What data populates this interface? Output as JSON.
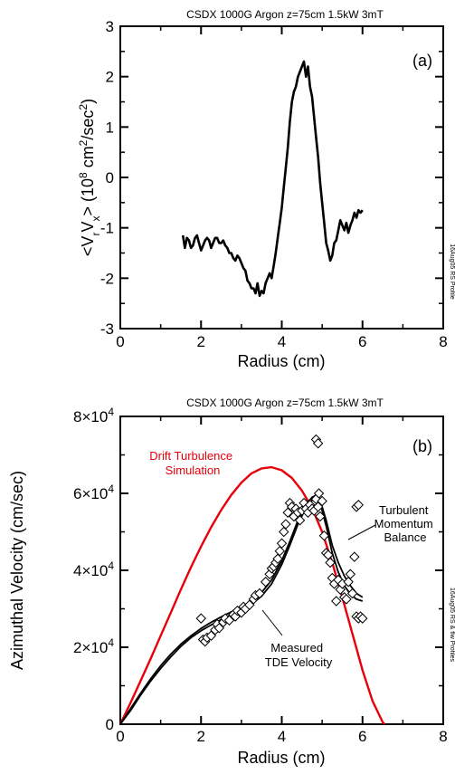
{
  "chart_data": [
    {
      "type": "line",
      "title": "CSDX 1000G Argon z=75cm 1.5kW 3mT",
      "panel_label": "(a)",
      "xlabel": "Radius (cm)",
      "ylabel": "<VrVx> (10^8 cm^2/sec^2)",
      "xlim": [
        0,
        8
      ],
      "ylim": [
        -3,
        3
      ],
      "x_ticks": [
        "0",
        "2",
        "4",
        "6",
        "8"
      ],
      "y_ticks": [
        "-3",
        "-2",
        "-1",
        "0",
        "1",
        "2",
        "3"
      ],
      "side_note": "16Aug05 RS Profile",
      "grid": false,
      "series": [
        {
          "color": "#000000",
          "x": [
            1.55,
            1.6,
            1.65,
            1.7,
            1.75,
            1.8,
            1.85,
            1.9,
            1.95,
            2.0,
            2.05,
            2.1,
            2.15,
            2.2,
            2.25,
            2.3,
            2.35,
            2.4,
            2.45,
            2.5,
            2.55,
            2.6,
            2.65,
            2.7,
            2.75,
            2.8,
            2.85,
            2.9,
            2.95,
            3.0,
            3.05,
            3.1,
            3.15,
            3.2,
            3.25,
            3.3,
            3.35,
            3.4,
            3.45,
            3.5,
            3.55,
            3.6,
            3.65,
            3.7,
            3.75,
            3.8,
            3.85,
            3.9,
            3.95,
            4.0,
            4.05,
            4.1,
            4.15,
            4.2,
            4.25,
            4.3,
            4.35,
            4.4,
            4.45,
            4.5,
            4.55,
            4.6,
            4.65,
            4.7,
            4.75,
            4.8,
            4.85,
            4.9,
            4.95,
            5.0,
            5.05,
            5.1,
            5.15,
            5.2,
            5.25,
            5.3,
            5.35,
            5.4,
            5.45,
            5.5,
            5.55,
            5.6,
            5.65,
            5.7,
            5.75,
            5.8,
            5.85,
            5.9,
            5.95,
            6.0
          ],
          "y": [
            -1.15,
            -1.4,
            -1.2,
            -1.25,
            -1.4,
            -1.35,
            -1.2,
            -1.15,
            -1.3,
            -1.45,
            -1.35,
            -1.25,
            -1.2,
            -1.25,
            -1.4,
            -1.3,
            -1.2,
            -1.2,
            -1.3,
            -1.3,
            -1.25,
            -1.35,
            -1.4,
            -1.5,
            -1.5,
            -1.6,
            -1.65,
            -1.55,
            -1.6,
            -1.7,
            -1.8,
            -1.85,
            -2.05,
            -2.1,
            -2.2,
            -2.2,
            -2.3,
            -2.1,
            -2.35,
            -2.25,
            -2.3,
            -2.1,
            -2.0,
            -1.9,
            -2.0,
            -1.75,
            -1.5,
            -1.2,
            -0.9,
            -0.6,
            -0.2,
            0.2,
            0.6,
            1.1,
            1.5,
            1.7,
            1.8,
            2.0,
            2.1,
            2.2,
            2.3,
            2.0,
            2.2,
            1.8,
            1.6,
            1.2,
            0.8,
            0.4,
            -0.1,
            -0.5,
            -0.9,
            -1.3,
            -1.45,
            -1.65,
            -1.55,
            -1.3,
            -1.25,
            -1.05,
            -0.85,
            -0.95,
            -1.05,
            -0.9,
            -1.1,
            -0.95,
            -0.85,
            -0.7,
            -0.8,
            -0.65,
            -0.7,
            -0.65
          ]
        }
      ]
    },
    {
      "type": "line",
      "title": "CSDX 1000G Argon z=75cm 1.5kW 3mT",
      "panel_label": "(b)",
      "xlabel": "Radius (cm)",
      "ylabel": "Azimuthal Velocity (cm/sec)",
      "xlim": [
        0,
        8
      ],
      "ylim": [
        0,
        80000
      ],
      "x_ticks": [
        "0",
        "2",
        "4",
        "6",
        "8"
      ],
      "y_ticks": [
        {
          "value": 0,
          "mantissa": "0",
          "exponent": ""
        },
        {
          "value": 20000,
          "mantissa": "2×10",
          "exponent": "4"
        },
        {
          "value": 40000,
          "mantissa": "4×10",
          "exponent": "4"
        },
        {
          "value": 60000,
          "mantissa": "6×10",
          "exponent": "4"
        },
        {
          "value": 80000,
          "mantissa": "8×10",
          "exponent": "4"
        }
      ],
      "side_note": "16Aug05 RS & flw Profiles",
      "grid": false,
      "annotations": [
        {
          "lines": [
            "Drift Turbulence",
            "Simulation"
          ],
          "color": "#e8000b"
        },
        {
          "lines": [
            "Turbulent",
            "Momentum",
            "Balance"
          ],
          "color": "#000000"
        },
        {
          "lines": [
            "Measured",
            "TDE Velocity"
          ],
          "color": "#000000"
        }
      ],
      "series": [
        {
          "color": "#e8000b",
          "x": [
            0,
            0.25,
            0.5,
            0.75,
            1.0,
            1.25,
            1.5,
            1.75,
            2.0,
            2.25,
            2.5,
            2.75,
            3.0,
            3.25,
            3.5,
            3.75,
            4.0,
            4.25,
            4.5,
            4.75,
            5.0,
            5.25,
            5.5,
            5.75,
            6.0,
            6.25,
            6.5,
            6.55
          ],
          "y": [
            0,
            5500,
            11200,
            17000,
            23000,
            29000,
            35000,
            40800,
            46200,
            51200,
            55700,
            59600,
            62800,
            65200,
            66500,
            66800,
            66000,
            64000,
            60700,
            56200,
            50000,
            42000,
            33000,
            23500,
            14000,
            6000,
            500,
            0
          ]
        },
        {
          "color": "#000000",
          "x": [
            0,
            0.25,
            0.5,
            0.75,
            1.0,
            1.25,
            1.5,
            1.75,
            2.0,
            2.25,
            2.5,
            2.75,
            3.0,
            3.25,
            3.5,
            3.75,
            4.0,
            4.2,
            4.4,
            4.6,
            4.75,
            4.85,
            4.95,
            5.1,
            5.25,
            5.4,
            5.55,
            5.7,
            5.85,
            6.0
          ],
          "y": [
            0,
            4000,
            8000,
            11800,
            15200,
            18200,
            20800,
            23000,
            24900,
            26500,
            27900,
            29200,
            30500,
            32000,
            34200,
            37500,
            42500,
            47500,
            53000,
            57200,
            59000,
            59500,
            58200,
            53000,
            46500,
            42000,
            38500,
            36000,
            34000,
            33000
          ]
        },
        {
          "color": "#000000",
          "x": [
            0,
            0.25,
            0.5,
            0.75,
            1.0,
            1.25,
            1.5,
            1.75,
            2.0,
            2.25,
            2.5,
            2.75,
            3.0,
            3.25,
            3.5,
            3.75,
            4.0,
            4.2,
            4.4,
            4.6,
            4.75,
            4.85,
            4.95,
            5.1,
            5.25,
            5.4,
            5.55,
            5.7,
            5.85,
            6.0
          ],
          "y": [
            0,
            3500,
            7500,
            11200,
            14500,
            17500,
            20200,
            22500,
            24300,
            25800,
            27200,
            28500,
            29800,
            31200,
            33300,
            36500,
            41500,
            46500,
            52000,
            56300,
            58200,
            58800,
            57500,
            51500,
            44500,
            39500,
            36000,
            33800,
            32500,
            32000
          ]
        }
      ],
      "scatter": {
        "marker": "diamond",
        "color": "#000000",
        "x": [
          2.0,
          2.05,
          2.1,
          2.15,
          2.25,
          2.35,
          2.4,
          2.45,
          2.55,
          2.6,
          2.7,
          2.8,
          2.85,
          2.9,
          3.0,
          3.05,
          3.1,
          3.2,
          3.3,
          3.35,
          3.45,
          3.6,
          3.7,
          3.75,
          3.8,
          3.85,
          3.9,
          3.95,
          4.0,
          4.05,
          4.1,
          4.15,
          4.2,
          4.25,
          4.3,
          4.35,
          4.4,
          4.45,
          4.5,
          4.55,
          4.6,
          4.65,
          4.7,
          4.75,
          4.8,
          4.85,
          4.9,
          4.92,
          4.95,
          5.0,
          5.05,
          5.1,
          5.15,
          5.2,
          5.25,
          5.3,
          5.35,
          5.4,
          5.45,
          5.5,
          5.55,
          5.6,
          5.65,
          5.7,
          5.75,
          5.8,
          5.85,
          5.9,
          5.95,
          6.0,
          4.85,
          4.9,
          5.85,
          5.9
        ],
        "y": [
          27500,
          22000,
          21500,
          22500,
          23000,
          24500,
          26000,
          25000,
          26500,
          27500,
          27000,
          28500,
          28000,
          29500,
          29000,
          30500,
          30000,
          31000,
          32500,
          33500,
          34000,
          37000,
          39000,
          40500,
          41000,
          42000,
          43000,
          45000,
          47000,
          50000,
          52000,
          55000,
          57500,
          56500,
          54000,
          56000,
          55000,
          53000,
          55500,
          57500,
          56000,
          55000,
          57000,
          56000,
          55500,
          58500,
          56500,
          60000,
          54000,
          58000,
          49000,
          44500,
          44000,
          42000,
          38000,
          36500,
          32000,
          37500,
          35000,
          36500,
          33000,
          32500,
          37000,
          39000,
          34000,
          43500,
          28000,
          27500,
          28000,
          27500,
          74000,
          73000,
          56500,
          57000
        ]
      }
    }
  ]
}
